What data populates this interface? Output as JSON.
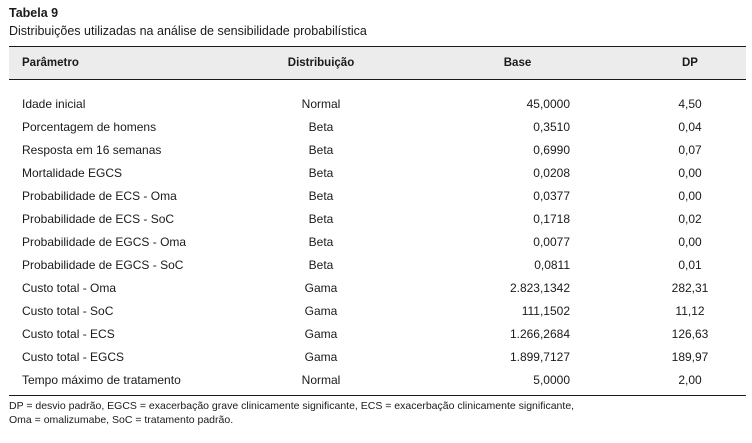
{
  "header": {
    "label": "Tabela 9",
    "caption": "Distribuições utilizadas na análise de sensibilidade probabilística"
  },
  "table": {
    "columns": [
      "Parâmetro",
      "Distribuição",
      "Base",
      "DP"
    ],
    "rows": [
      {
        "param": "Idade inicial",
        "dist": "Normal",
        "base": "45,0000",
        "dp": "4,50"
      },
      {
        "param": "Porcentagem de homens",
        "dist": "Beta",
        "base": "0,3510",
        "dp": "0,04"
      },
      {
        "param": "Resposta em 16 semanas",
        "dist": "Beta",
        "base": "0,6990",
        "dp": "0,07"
      },
      {
        "param": "Mortalidade EGCS",
        "dist": "Beta",
        "base": "0,0208",
        "dp": "0,00"
      },
      {
        "param": "Probabilidade de ECS - Oma",
        "dist": "Beta",
        "base": "0,0377",
        "dp": "0,00"
      },
      {
        "param": "Probabilidade de ECS - SoC",
        "dist": "Beta",
        "base": "0,1718",
        "dp": "0,02"
      },
      {
        "param": "Probabilidade de EGCS - Oma",
        "dist": "Beta",
        "base": "0,0077",
        "dp": "0,00"
      },
      {
        "param": "Probabilidade de EGCS - SoC",
        "dist": "Beta",
        "base": "0,0811",
        "dp": "0,01"
      },
      {
        "param": "Custo total - Oma",
        "dist": "Gama",
        "base": "2.823,1342",
        "dp": "282,31"
      },
      {
        "param": "Custo total - SoC",
        "dist": "Gama",
        "base": "111,1502",
        "dp": "11,12"
      },
      {
        "param": "Custo total - ECS",
        "dist": "Gama",
        "base": "1.266,2684",
        "dp": "126,63"
      },
      {
        "param": "Custo total - EGCS",
        "dist": "Gama",
        "base": "1.899,7127",
        "dp": "189,97"
      },
      {
        "param": "Tempo máximo de tratamento",
        "dist": "Normal",
        "base": "5,0000",
        "dp": "2,00"
      }
    ]
  },
  "footnote": {
    "line1": "DP = desvio padrão, EGCS = exacerbação grave clinicamente significante, ECS = exacerbação clinicamente significante,",
    "line2": "Oma = omalizumabe, SoC = tratamento padrão."
  }
}
